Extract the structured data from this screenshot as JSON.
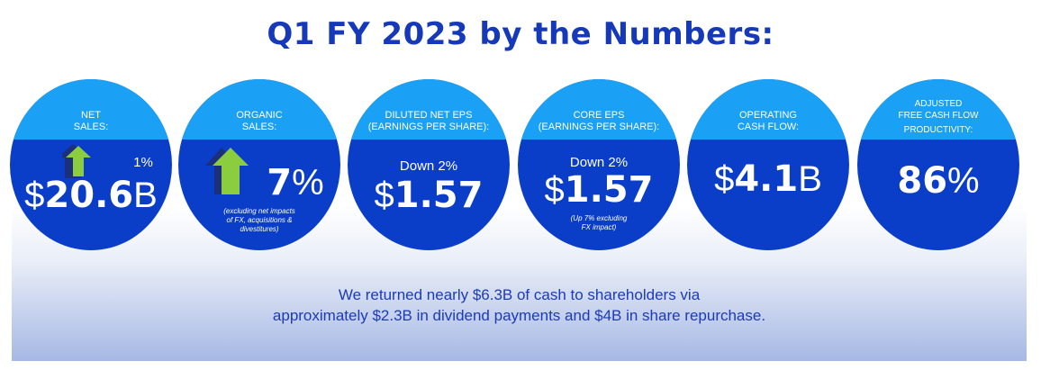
{
  "title": "Q1 FY 2023 by the Numbers:",
  "colors": {
    "title": "#1539b8",
    "circle_body": "#0a3ec9",
    "circle_cap": "#1aa0f4",
    "arrow": "#8ccc3f"
  },
  "metrics": [
    {
      "label_1": "NET",
      "label_2": "SALES:",
      "change": "1%",
      "prefix": "$",
      "value": "20.6",
      "suffix": "B",
      "icon": "up-arrow-icon"
    },
    {
      "label_1": "ORGANIC",
      "label_2": "SALES:",
      "value": "7",
      "suffix": "%",
      "note_1": "(excluding net impacts",
      "note_2": "of FX, acquisitions &",
      "note_3": "divestitures)",
      "icon": "up-arrow-icon"
    },
    {
      "label_1": "DILUTED NET EPS",
      "label_2": "(EARNINGS PER SHARE):",
      "change": "Down 2%",
      "prefix": "$",
      "value": "1.57"
    },
    {
      "label_1": "CORE EPS",
      "label_2": "(EARNINGS PER SHARE):",
      "change": "Down 2%",
      "prefix": "$",
      "value": "1.57",
      "note_1": "(Up 7% excluding",
      "note_2": "FX impact)"
    },
    {
      "label_1": "OPERATING",
      "label_2": "CASH FLOW:",
      "prefix": "$",
      "value": "4.1",
      "suffix": "B"
    },
    {
      "label_1": "ADJUSTED",
      "label_2": "FREE  CASH FLOW",
      "label_3": "PRODUCTIVITY:",
      "value": "86",
      "suffix": "%"
    }
  ],
  "message": {
    "line_1": "We returned nearly $6.3B of cash to shareholders via",
    "line_2": "approximately $2.3B in dividend payments and $4B in share repurchase."
  }
}
